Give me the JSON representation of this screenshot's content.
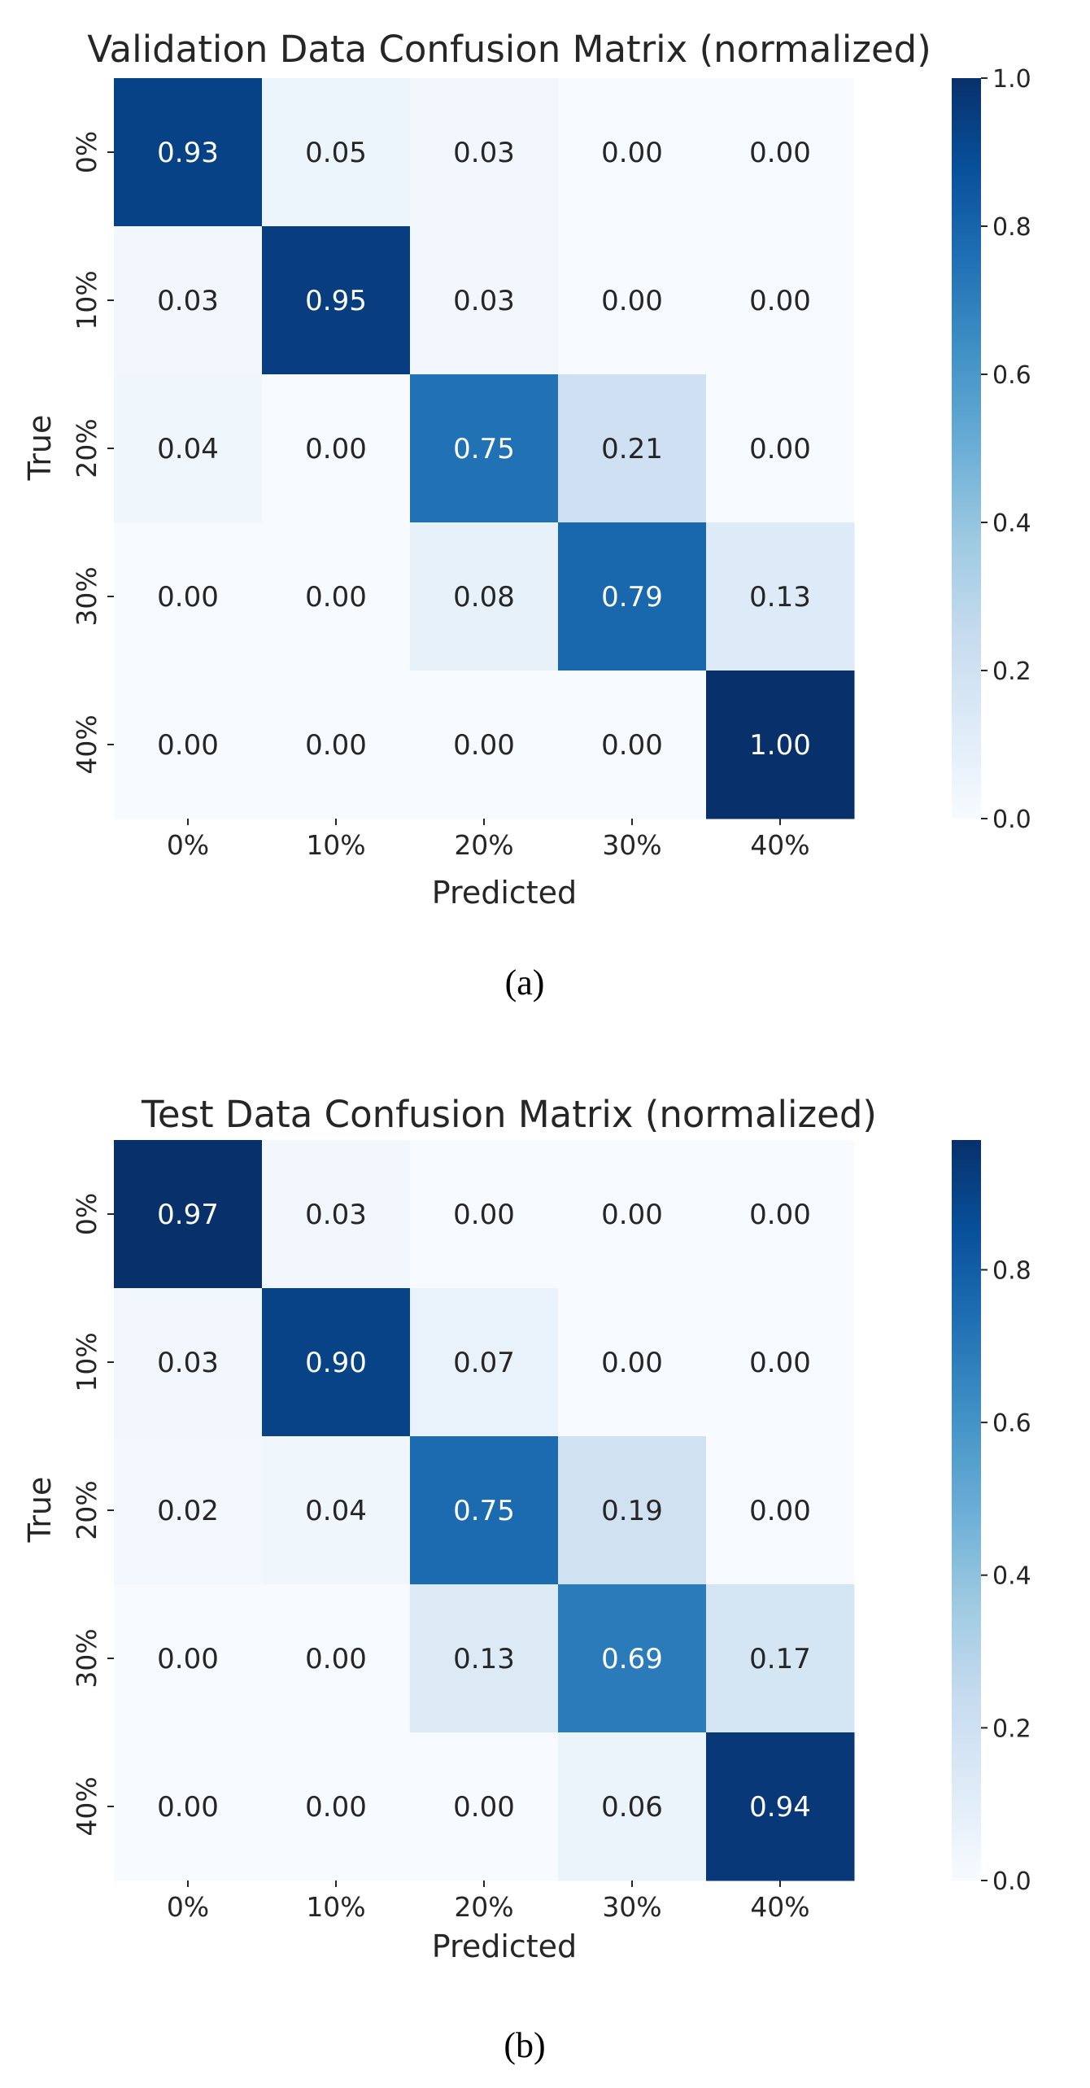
{
  "chart_data": [
    {
      "type": "heatmap",
      "title": "Validation Data Confusion Matrix (normalized)",
      "xlabel": "Predicted",
      "ylabel": "True",
      "x_categories": [
        "0%",
        "10%",
        "20%",
        "30%",
        "40%"
      ],
      "y_categories": [
        "0%",
        "10%",
        "20%",
        "30%",
        "40%"
      ],
      "values": [
        [
          "0.93",
          "0.05",
          "0.03",
          "0.00",
          "0.00"
        ],
        [
          "0.03",
          "0.95",
          "0.03",
          "0.00",
          "0.00"
        ],
        [
          "0.04",
          "0.00",
          "0.75",
          "0.21",
          "0.00"
        ],
        [
          "0.00",
          "0.00",
          "0.08",
          "0.79",
          "0.13"
        ],
        [
          "0.00",
          "0.00",
          "0.00",
          "0.00",
          "1.00"
        ]
      ],
      "colorbar": {
        "vmin": 0.0,
        "vmax": 1.0,
        "ticks": [
          "0.0",
          "0.2",
          "0.4",
          "0.6",
          "0.8",
          "1.0"
        ],
        "colormap": "Blues"
      },
      "caption": "(a)"
    },
    {
      "type": "heatmap",
      "title": "Test Data Confusion Matrix (normalized)",
      "xlabel": "Predicted",
      "ylabel": "True",
      "x_categories": [
        "0%",
        "10%",
        "20%",
        "30%",
        "40%"
      ],
      "y_categories": [
        "0%",
        "10%",
        "20%",
        "30%",
        "40%"
      ],
      "values": [
        [
          "0.97",
          "0.03",
          "0.00",
          "0.00",
          "0.00"
        ],
        [
          "0.03",
          "0.90",
          "0.07",
          "0.00",
          "0.00"
        ],
        [
          "0.02",
          "0.04",
          "0.75",
          "0.19",
          "0.00"
        ],
        [
          "0.00",
          "0.00",
          "0.13",
          "0.69",
          "0.17"
        ],
        [
          "0.00",
          "0.00",
          "0.00",
          "0.06",
          "0.94"
        ]
      ],
      "colorbar": {
        "vmin": 0.0,
        "vmax": 0.97,
        "ticks": [
          "0.0",
          "0.2",
          "0.4",
          "0.6",
          "0.8"
        ],
        "colormap": "Blues"
      },
      "caption": "(b)"
    }
  ]
}
